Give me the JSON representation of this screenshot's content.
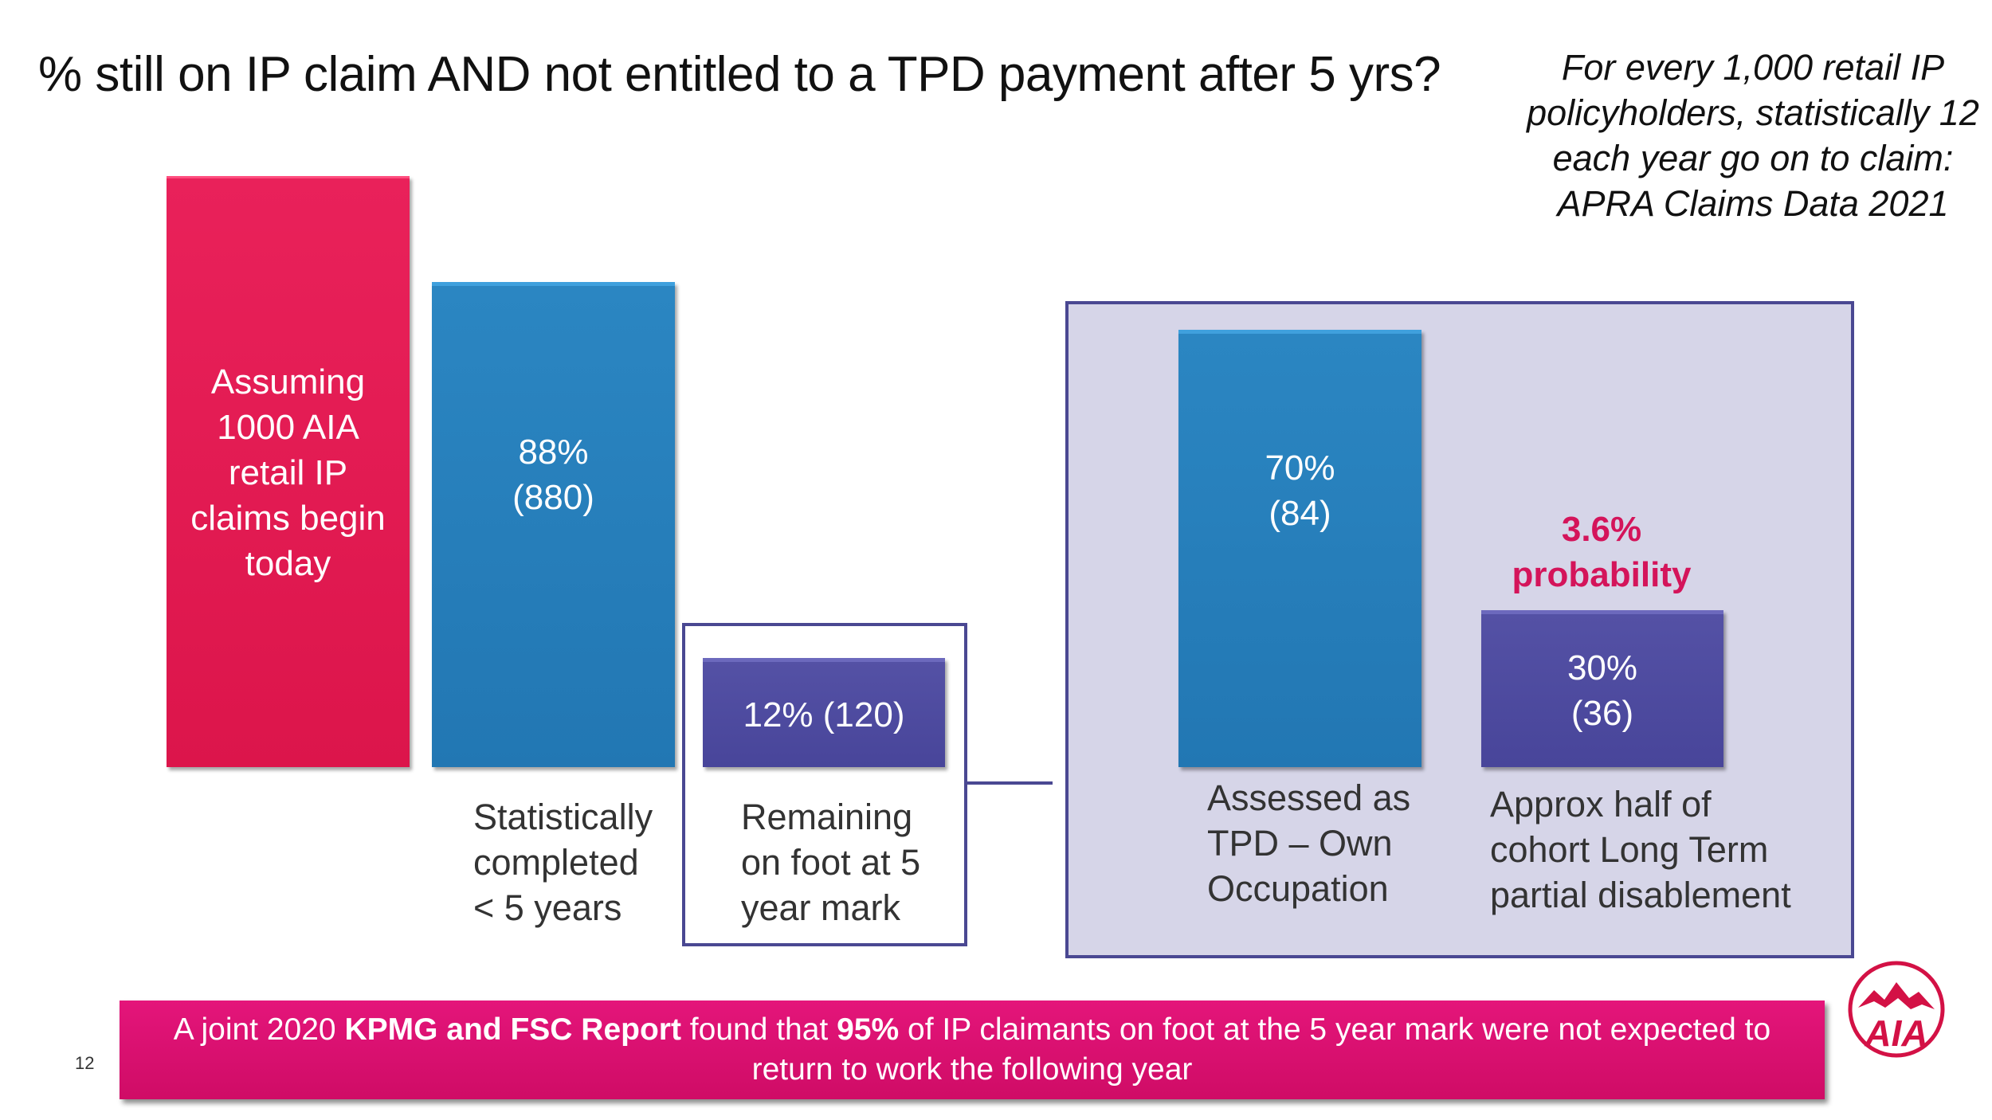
{
  "title": "% still on IP claim AND not entitled to a TPD payment after 5 yrs?",
  "stat_note": "For every 1,000 retail IP policyholders, statistically 12 each year go on to claim: APRA Claims Data 2021",
  "bars": {
    "start": {
      "label": "Assuming\n1000 AIA\nretail IP\nclaims begin\ntoday",
      "value": 1000
    },
    "completed": {
      "label": "88%\n(880)",
      "value": 880,
      "caption": "Statistically\ncompleted\n< 5 years"
    },
    "remaining": {
      "label": "12% (120)",
      "value": 120,
      "caption": "Remaining\non foot at 5\nyear mark"
    },
    "tpd": {
      "label": "70%\n(84)",
      "value": 84,
      "caption": "Assessed as\nTPD – Own\nOccupation"
    },
    "partial": {
      "label": "30%\n(36)",
      "value": 36,
      "caption": "Approx half of\ncohort Long Term\npartial disablement"
    }
  },
  "probability_label": "3.6%\nprobability",
  "banner": {
    "part1": "A joint 2020 ",
    "bold1": "KPMG and FSC Report",
    "part2": " found that ",
    "bold2": "95%",
    "part3": " of IP claimants on foot at the 5 year mark were not expected to return to work the following year"
  },
  "page_number": "12",
  "logo_text": "AIA",
  "colors": {
    "red": "#dc154b",
    "blue": "#2277b3",
    "purple": "#48459a",
    "panel": "#d6d5e8",
    "banner": "#d40f6d"
  }
}
